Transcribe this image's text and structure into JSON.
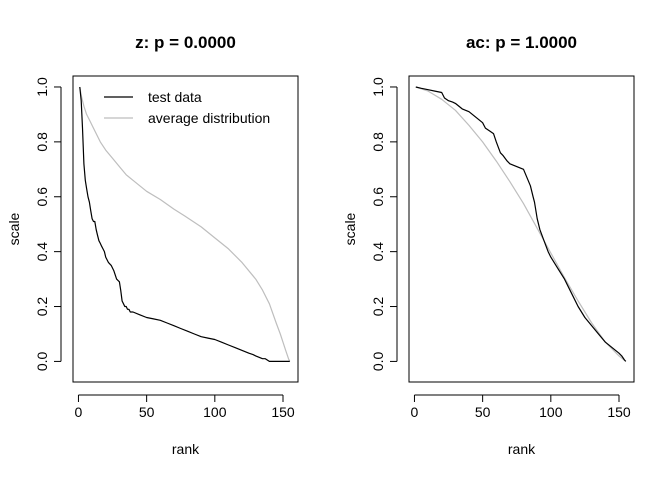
{
  "chart_data": [
    {
      "type": "line",
      "title": "z: p = 0.0000",
      "xlabel": "rank",
      "ylabel": "scale",
      "xlim": [
        0,
        156
      ],
      "ylim": [
        0,
        1
      ],
      "xticks": [
        "0",
        "50",
        "100",
        "150"
      ],
      "yticks": [
        "0.0",
        "0.2",
        "0.4",
        "0.6",
        "0.8",
        "1.0"
      ],
      "legend": {
        "position": "top-left",
        "entries": [
          "test data",
          "average distribution"
        ]
      },
      "series": [
        {
          "name": "test data",
          "color": "#000000",
          "x": [
            1,
            2,
            3,
            4,
            5,
            6,
            7,
            8,
            9,
            10,
            11,
            12,
            13,
            14,
            15,
            16,
            17,
            18,
            19,
            20,
            22,
            24,
            26,
            28,
            30,
            31,
            32,
            33,
            34,
            35,
            36,
            37,
            38,
            40,
            45,
            50,
            55,
            60,
            65,
            70,
            75,
            80,
            85,
            90,
            95,
            100,
            105,
            110,
            115,
            120,
            125,
            128,
            130,
            135,
            137,
            140,
            145,
            150,
            155
          ],
          "y": [
            1.0,
            0.95,
            0.85,
            0.72,
            0.66,
            0.63,
            0.6,
            0.58,
            0.55,
            0.52,
            0.51,
            0.51,
            0.48,
            0.46,
            0.44,
            0.43,
            0.42,
            0.41,
            0.4,
            0.38,
            0.36,
            0.35,
            0.33,
            0.3,
            0.29,
            0.26,
            0.22,
            0.21,
            0.2,
            0.2,
            0.19,
            0.19,
            0.18,
            0.18,
            0.17,
            0.16,
            0.155,
            0.15,
            0.14,
            0.13,
            0.12,
            0.11,
            0.1,
            0.09,
            0.085,
            0.08,
            0.07,
            0.06,
            0.05,
            0.04,
            0.03,
            0.025,
            0.02,
            0.01,
            0.01,
            0.0,
            0.0,
            0.0,
            0.0
          ]
        },
        {
          "name": "average distribution",
          "color": "#bebebe",
          "x": [
            1,
            2,
            3,
            4,
            6,
            8,
            10,
            13,
            16,
            20,
            25,
            30,
            35,
            40,
            50,
            60,
            70,
            78,
            90,
            100,
            110,
            120,
            130,
            135,
            140,
            145,
            148,
            150,
            152,
            153,
            154,
            155
          ],
          "y": [
            1.0,
            0.97,
            0.95,
            0.93,
            0.9,
            0.88,
            0.86,
            0.83,
            0.8,
            0.77,
            0.74,
            0.71,
            0.68,
            0.66,
            0.62,
            0.59,
            0.555,
            0.53,
            0.49,
            0.45,
            0.41,
            0.36,
            0.3,
            0.26,
            0.21,
            0.14,
            0.1,
            0.07,
            0.04,
            0.025,
            0.01,
            0.0
          ]
        }
      ]
    },
    {
      "type": "line",
      "title": "ac: p = 1.0000",
      "xlabel": "rank",
      "ylabel": "scale",
      "xlim": [
        0,
        156
      ],
      "ylim": [
        0,
        1
      ],
      "xticks": [
        "0",
        "50",
        "100",
        "150"
      ],
      "yticks": [
        "0.0",
        "0.2",
        "0.4",
        "0.6",
        "0.8",
        "1.0"
      ],
      "series": [
        {
          "name": "test data",
          "color": "#000000",
          "x": [
            1,
            5,
            10,
            15,
            20,
            22,
            25,
            28,
            30,
            35,
            40,
            45,
            50,
            52,
            55,
            58,
            60,
            63,
            65,
            68,
            70,
            75,
            80,
            85,
            87,
            88,
            90,
            92,
            95,
            98,
            100,
            105,
            110,
            115,
            120,
            125,
            130,
            135,
            140,
            145,
            150,
            152,
            154,
            155
          ],
          "y": [
            1.0,
            0.995,
            0.99,
            0.985,
            0.98,
            0.96,
            0.95,
            0.945,
            0.94,
            0.92,
            0.91,
            0.89,
            0.87,
            0.85,
            0.84,
            0.83,
            0.8,
            0.76,
            0.75,
            0.73,
            0.72,
            0.71,
            0.7,
            0.64,
            0.6,
            0.58,
            0.52,
            0.48,
            0.44,
            0.4,
            0.38,
            0.34,
            0.3,
            0.25,
            0.2,
            0.16,
            0.13,
            0.1,
            0.07,
            0.05,
            0.03,
            0.02,
            0.005,
            0.0
          ]
        },
        {
          "name": "average distribution",
          "color": "#bebebe",
          "x": [
            1,
            10,
            20,
            30,
            40,
            50,
            60,
            70,
            80,
            90,
            100,
            110,
            120,
            130,
            140,
            150,
            155
          ],
          "y": [
            1.0,
            0.985,
            0.955,
            0.915,
            0.86,
            0.8,
            0.73,
            0.655,
            0.575,
            0.485,
            0.395,
            0.305,
            0.22,
            0.14,
            0.07,
            0.02,
            0.0
          ]
        }
      ]
    }
  ]
}
